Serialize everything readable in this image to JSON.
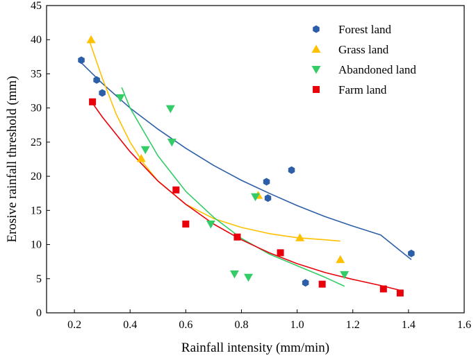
{
  "chart_data": {
    "type": "scatter",
    "title": "",
    "xlabel": "Rainfall intensity (mm/min)",
    "ylabel": "Erosive rainfall threshold  (mm)",
    "xlim": [
      0.1,
      1.6
    ],
    "ylim": [
      0,
      45
    ],
    "xticks": [
      0.2,
      0.4,
      0.6,
      0.8,
      1.0,
      1.2,
      1.4,
      1.6
    ],
    "xtick_labels": [
      "0.2",
      "0.4",
      "0.6",
      "0.8",
      "1.0",
      "1.2",
      "1.4",
      "1.6"
    ],
    "yticks": [
      0,
      5,
      10,
      15,
      20,
      25,
      30,
      35,
      40,
      45
    ],
    "ytick_labels": [
      "0",
      "5",
      "10",
      "15",
      "20",
      "25",
      "30",
      "35",
      "40",
      "45"
    ],
    "grid": false,
    "legend_position": "top-right",
    "series": [
      {
        "name": "Forest land",
        "color": "#2c5fa8",
        "marker": "hexagon",
        "points": [
          [
            0.225,
            37.0
          ],
          [
            0.28,
            34.1
          ],
          [
            0.3,
            32.2
          ],
          [
            0.89,
            19.2
          ],
          [
            0.895,
            16.8
          ],
          [
            0.98,
            20.9
          ],
          [
            1.03,
            4.4
          ],
          [
            1.41,
            8.7
          ]
        ],
        "fit": {
          "range": [
            0.22,
            1.41
          ],
          "curve": [
            [
              0.22,
              36.8
            ],
            [
              0.3,
              33.6
            ],
            [
              0.4,
              30.0
            ],
            [
              0.5,
              26.9
            ],
            [
              0.6,
              24.1
            ],
            [
              0.7,
              21.6
            ],
            [
              0.8,
              19.4
            ],
            [
              0.9,
              17.5
            ],
            [
              1.0,
              15.7
            ],
            [
              1.1,
              14.1
            ],
            [
              1.2,
              12.7
            ],
            [
              1.3,
              11.4
            ],
            [
              1.41,
              7.8
            ]
          ]
        }
      },
      {
        "name": "Grass land",
        "color": "#ffc000",
        "marker": "triangle-up",
        "points": [
          [
            0.26,
            40.0
          ],
          [
            0.44,
            22.6
          ],
          [
            0.86,
            17.2
          ],
          [
            1.01,
            11.0
          ],
          [
            1.155,
            7.8
          ]
        ],
        "fit": {
          "range": [
            0.255,
            1.155
          ],
          "curve": [
            [
              0.255,
              39.7
            ],
            [
              0.3,
              34.4
            ],
            [
              0.35,
              29.1
            ],
            [
              0.4,
              25.0
            ],
            [
              0.45,
              21.8
            ],
            [
              0.5,
              19.3
            ],
            [
              0.6,
              15.9
            ],
            [
              0.7,
              13.8
            ],
            [
              0.8,
              12.5
            ],
            [
              0.9,
              11.6
            ],
            [
              1.0,
              11.0
            ],
            [
              1.1,
              10.7
            ],
            [
              1.155,
              10.5
            ]
          ]
        }
      },
      {
        "name": "Abandoned land",
        "color": "#33cc66",
        "marker": "triangle-down",
        "points": [
          [
            0.365,
            31.5
          ],
          [
            0.455,
            23.9
          ],
          [
            0.545,
            29.9
          ],
          [
            0.55,
            25.0
          ],
          [
            0.69,
            13.0
          ],
          [
            0.775,
            5.7
          ],
          [
            0.825,
            5.2
          ],
          [
            0.85,
            17.0
          ],
          [
            1.17,
            5.6
          ]
        ],
        "fit": {
          "range": [
            0.37,
            1.17
          ],
          "curve": [
            [
              0.37,
              33.0
            ],
            [
              0.4,
              30.0
            ],
            [
              0.5,
              23.0
            ],
            [
              0.6,
              17.8
            ],
            [
              0.7,
              14.0
            ],
            [
              0.8,
              10.9
            ],
            [
              0.9,
              8.6
            ],
            [
              1.0,
              6.9
            ],
            [
              1.1,
              5.2
            ],
            [
              1.17,
              3.9
            ]
          ]
        }
      },
      {
        "name": "Farm land",
        "color": "#e8000b",
        "marker": "square",
        "points": [
          [
            0.265,
            30.9
          ],
          [
            0.565,
            18.0
          ],
          [
            0.6,
            13.0
          ],
          [
            0.785,
            11.1
          ],
          [
            0.94,
            8.8
          ],
          [
            1.09,
            4.2
          ],
          [
            1.31,
            3.5
          ],
          [
            1.37,
            2.9
          ]
        ],
        "fit": {
          "range": [
            0.26,
            1.37
          ],
          "curve": [
            [
              0.26,
              31.0
            ],
            [
              0.3,
              28.7
            ],
            [
              0.4,
              23.6
            ],
            [
              0.5,
              19.3
            ],
            [
              0.6,
              15.9
            ],
            [
              0.7,
              13.0
            ],
            [
              0.8,
              10.7
            ],
            [
              0.9,
              8.8
            ],
            [
              1.0,
              7.2
            ],
            [
              1.1,
              5.9
            ],
            [
              1.2,
              4.9
            ],
            [
              1.3,
              4.0
            ],
            [
              1.37,
              3.3
            ]
          ]
        }
      }
    ]
  }
}
